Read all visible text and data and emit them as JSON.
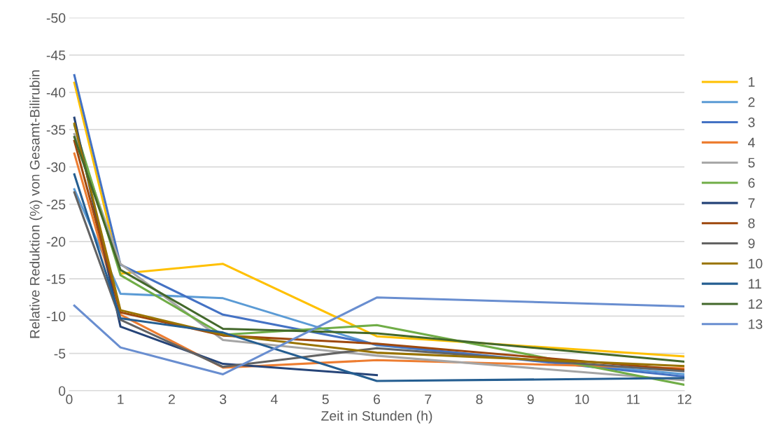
{
  "chart_data": {
    "type": "line",
    "xlabel": "Zeit in Stunden (h)",
    "ylabel": "Relative Reduktion (%) von Gesamt-Bilirubin",
    "x": [
      0.1,
      1,
      3,
      6,
      12
    ],
    "xlim": [
      0,
      12
    ],
    "xticks": [
      0,
      1,
      2,
      3,
      4,
      5,
      6,
      7,
      8,
      9,
      10,
      11,
      12
    ],
    "ylim": [
      0,
      -50
    ],
    "yticks": [
      0,
      -5,
      -10,
      -15,
      -20,
      -25,
      -30,
      -35,
      -40,
      -45,
      -50
    ],
    "grid": "y",
    "legend": "right",
    "marker": "none",
    "line_style": "solid",
    "series": [
      {
        "name": "1",
        "color": "#ffc000",
        "values": [
          -41.3,
          -15.7,
          -17.0,
          -7.3,
          -4.6
        ]
      },
      {
        "name": "2",
        "color": "#5b9bd5",
        "values": [
          -27,
          -13.0,
          -12.4,
          -6.1,
          -2.2
        ]
      },
      {
        "name": "3",
        "color": "#4472c4",
        "values": [
          -42.3,
          -16.9,
          -10.2,
          -6.2,
          -1.9
        ]
      },
      {
        "name": "4",
        "color": "#ed7d31",
        "values": [
          -31.8,
          -10.2,
          -3.1,
          -4.1,
          -3.0
        ]
      },
      {
        "name": "5",
        "color": "#a5a5a5",
        "values": [
          -34.4,
          -17.0,
          -6.8,
          -4.7,
          -1.4
        ]
      },
      {
        "name": "6",
        "color": "#70ad47",
        "values": [
          -35.6,
          -15.5,
          -7.5,
          -8.8,
          -0.8
        ]
      },
      {
        "name": "7",
        "color": "#264478",
        "values": [
          -36.6,
          -8.6,
          -3.6,
          -2.1,
          null
        ]
      },
      {
        "name": "8",
        "color": "#9e480e",
        "values": [
          -33.5,
          -10.5,
          -7.4,
          -6.3,
          -2.8
        ]
      },
      {
        "name": "9",
        "color": "#636363",
        "values": [
          -26.6,
          -9.5,
          -3.2,
          -5.7,
          -2.6
        ]
      },
      {
        "name": "10",
        "color": "#997300",
        "values": [
          -35.8,
          -10.8,
          -7.5,
          -5.1,
          -3.3
        ]
      },
      {
        "name": "11",
        "color": "#255e91",
        "values": [
          -29.0,
          -9.7,
          -7.8,
          -1.3,
          -1.7
        ]
      },
      {
        "name": "12",
        "color": "#43682b",
        "values": [
          -34.0,
          -16.2,
          -8.3,
          -7.7,
          -3.9
        ]
      },
      {
        "name": "13",
        "color": "#698ed0",
        "values": [
          -11.4,
          -5.8,
          -2.2,
          -12.5,
          -11.3
        ]
      }
    ]
  }
}
